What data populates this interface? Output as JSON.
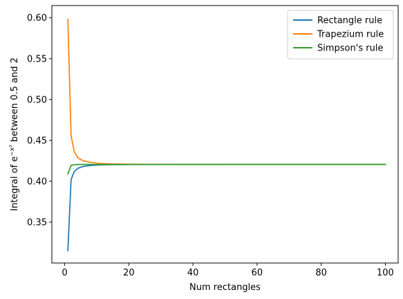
{
  "chart_data": {
    "type": "line",
    "title": "",
    "xlabel": "Num rectangles",
    "ylabel": "Integral of e",
    "ylabel_superscript": "−x²",
    "ylabel_suffix": " between 0.5 and 2",
    "xlim": [
      -4,
      104
    ],
    "ylim": [
      0.3,
      0.615
    ],
    "xticks": [
      0,
      20,
      40,
      60,
      80,
      100
    ],
    "yticks": [
      0.35,
      0.4,
      0.45,
      0.5,
      0.55,
      0.6
    ],
    "xtick_labels": [
      "0",
      "20",
      "40",
      "60",
      "80",
      "100"
    ],
    "ytick_labels": [
      "0.35",
      "0.40",
      "0.45",
      "0.50",
      "0.55",
      "0.60"
    ],
    "grid": false,
    "legend_position": "top-right",
    "series": [
      {
        "name": "Rectangle rule",
        "color": "#1f77b4",
        "x": [
          1,
          2,
          3,
          4,
          5,
          6,
          7,
          8,
          10,
          12,
          15,
          20,
          30,
          50,
          100
        ],
        "y": [
          0.315,
          0.402,
          0.412,
          0.4155,
          0.4172,
          0.4182,
          0.4189,
          0.4193,
          0.4198,
          0.4201,
          0.4203,
          0.4205,
          0.4206,
          0.4206,
          0.4206
        ]
      },
      {
        "name": "Trapezium rule",
        "color": "#ff7f0e",
        "x": [
          1,
          2,
          3,
          4,
          5,
          6,
          7,
          8,
          10,
          12,
          15,
          20,
          30,
          50,
          100
        ],
        "y": [
          0.598,
          0.456,
          0.436,
          0.4295,
          0.4265,
          0.425,
          0.424,
          0.4232,
          0.4222,
          0.4216,
          0.4212,
          0.4209,
          0.4207,
          0.4206,
          0.4206
        ]
      },
      {
        "name": "Simpson's rule",
        "color": "#2ca02c",
        "x": [
          1,
          2,
          3,
          4,
          5,
          6,
          8,
          10,
          20,
          50,
          100
        ],
        "y": [
          0.409,
          0.4195,
          0.4203,
          0.4205,
          0.4206,
          0.4206,
          0.4206,
          0.4206,
          0.4206,
          0.4206,
          0.4206
        ]
      }
    ]
  }
}
